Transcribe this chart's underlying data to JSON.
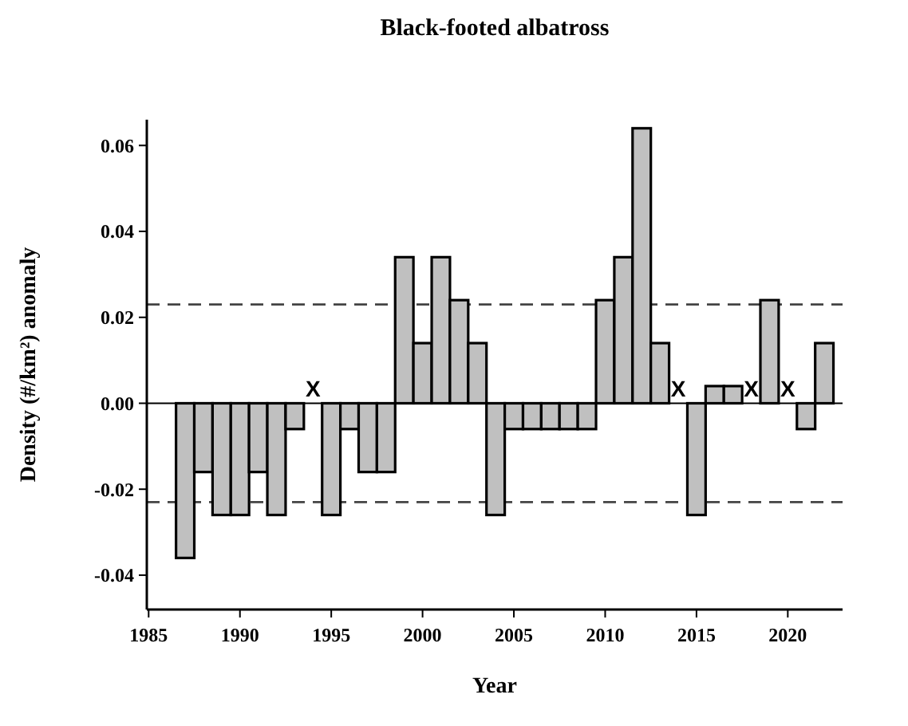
{
  "chart_data": {
    "type": "bar",
    "title": "Black-footed albatross",
    "xlabel": "Year",
    "ylabel": "Density (#/km²) anomaly",
    "x": [
      1987,
      1988,
      1989,
      1990,
      1991,
      1992,
      1993,
      1994,
      1995,
      1996,
      1997,
      1998,
      1999,
      2000,
      2001,
      2002,
      2003,
      2004,
      2005,
      2006,
      2007,
      2008,
      2009,
      2010,
      2011,
      2012,
      2013,
      2014,
      2015,
      2016,
      2017,
      2018,
      2019,
      2020,
      2021,
      2022
    ],
    "values": [
      -0.036,
      -0.016,
      -0.026,
      -0.026,
      -0.016,
      -0.026,
      -0.006,
      null,
      -0.026,
      -0.006,
      -0.016,
      -0.016,
      0.034,
      0.014,
      0.034,
      0.024,
      0.014,
      -0.026,
      -0.006,
      -0.006,
      -0.006,
      -0.006,
      -0.006,
      0.024,
      0.034,
      0.064,
      0.014,
      null,
      -0.026,
      0.004,
      0.004,
      null,
      0.024,
      null,
      -0.006,
      0.014
    ],
    "color": "#c0c0c0",
    "xlim": [
      1984.9,
      2023
    ],
    "xticks": [
      1985,
      1990,
      1995,
      2000,
      2005,
      2010,
      2015,
      2020
    ],
    "ylim": [
      -0.048,
      0.066
    ],
    "yticks": [
      {
        "value": -0.04,
        "label": "-0.04"
      },
      {
        "value": -0.02,
        "label": "-0.02"
      },
      {
        "value": 0,
        "label": "0.00"
      },
      {
        "value": 0.02,
        "label": "0.02"
      },
      {
        "value": 0.04,
        "label": "0.04"
      },
      {
        "value": 0.06,
        "label": "0.06"
      }
    ],
    "ref_lines": [
      {
        "axis": "y",
        "value": 0.023,
        "line_style": "dashed"
      },
      {
        "axis": "y",
        "value": -0.023,
        "line_style": "dashed"
      }
    ],
    "annotations": [
      "X",
      "X",
      "X",
      "X"
    ]
  }
}
